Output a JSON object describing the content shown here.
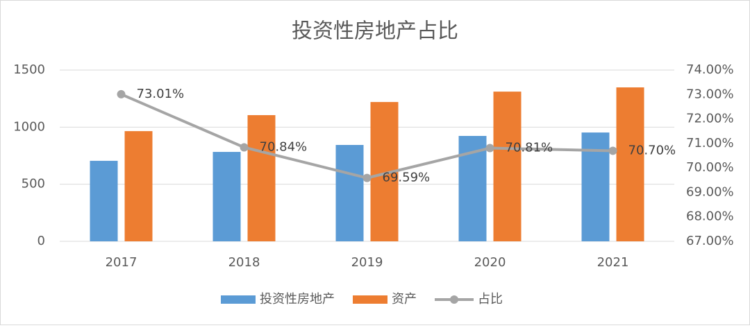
{
  "chart_data": {
    "type": "bar",
    "title": "投资性房地产占比",
    "categories": [
      "2017",
      "2018",
      "2019",
      "2020",
      "2021"
    ],
    "series": [
      {
        "name": "投资性房地产",
        "type": "bar",
        "color": "#5b9bd5",
        "values": [
          705,
          783,
          844,
          923,
          953
        ]
      },
      {
        "name": "资产",
        "type": "bar",
        "color": "#ed7d31",
        "values": [
          965,
          1105,
          1220,
          1311,
          1348
        ]
      },
      {
        "name": "占比",
        "type": "line",
        "axis": "y2",
        "color": "#a5a5a5",
        "values": [
          73.01,
          70.84,
          69.59,
          70.81,
          70.7
        ],
        "value_labels": [
          "73.01%",
          "70.84%",
          "69.59%",
          "70.81%",
          "70.70%"
        ]
      }
    ],
    "ylim": [
      0,
      1500
    ],
    "yticks": [
      0,
      500,
      1000,
      1500
    ],
    "y2lim": [
      67,
      74
    ],
    "y2ticks": [
      {
        "value": 67,
        "label": "67.00%"
      },
      {
        "value": 68,
        "label": "68.00%"
      },
      {
        "value": 69,
        "label": "69.00%"
      },
      {
        "value": 70,
        "label": "70.00%"
      },
      {
        "value": 71,
        "label": "71.00%"
      },
      {
        "value": 72,
        "label": "72.00%"
      },
      {
        "value": 73,
        "label": "73.00%"
      },
      {
        "value": 74,
        "label": "74.00%"
      }
    ],
    "grid": true,
    "legend": "bottom"
  }
}
